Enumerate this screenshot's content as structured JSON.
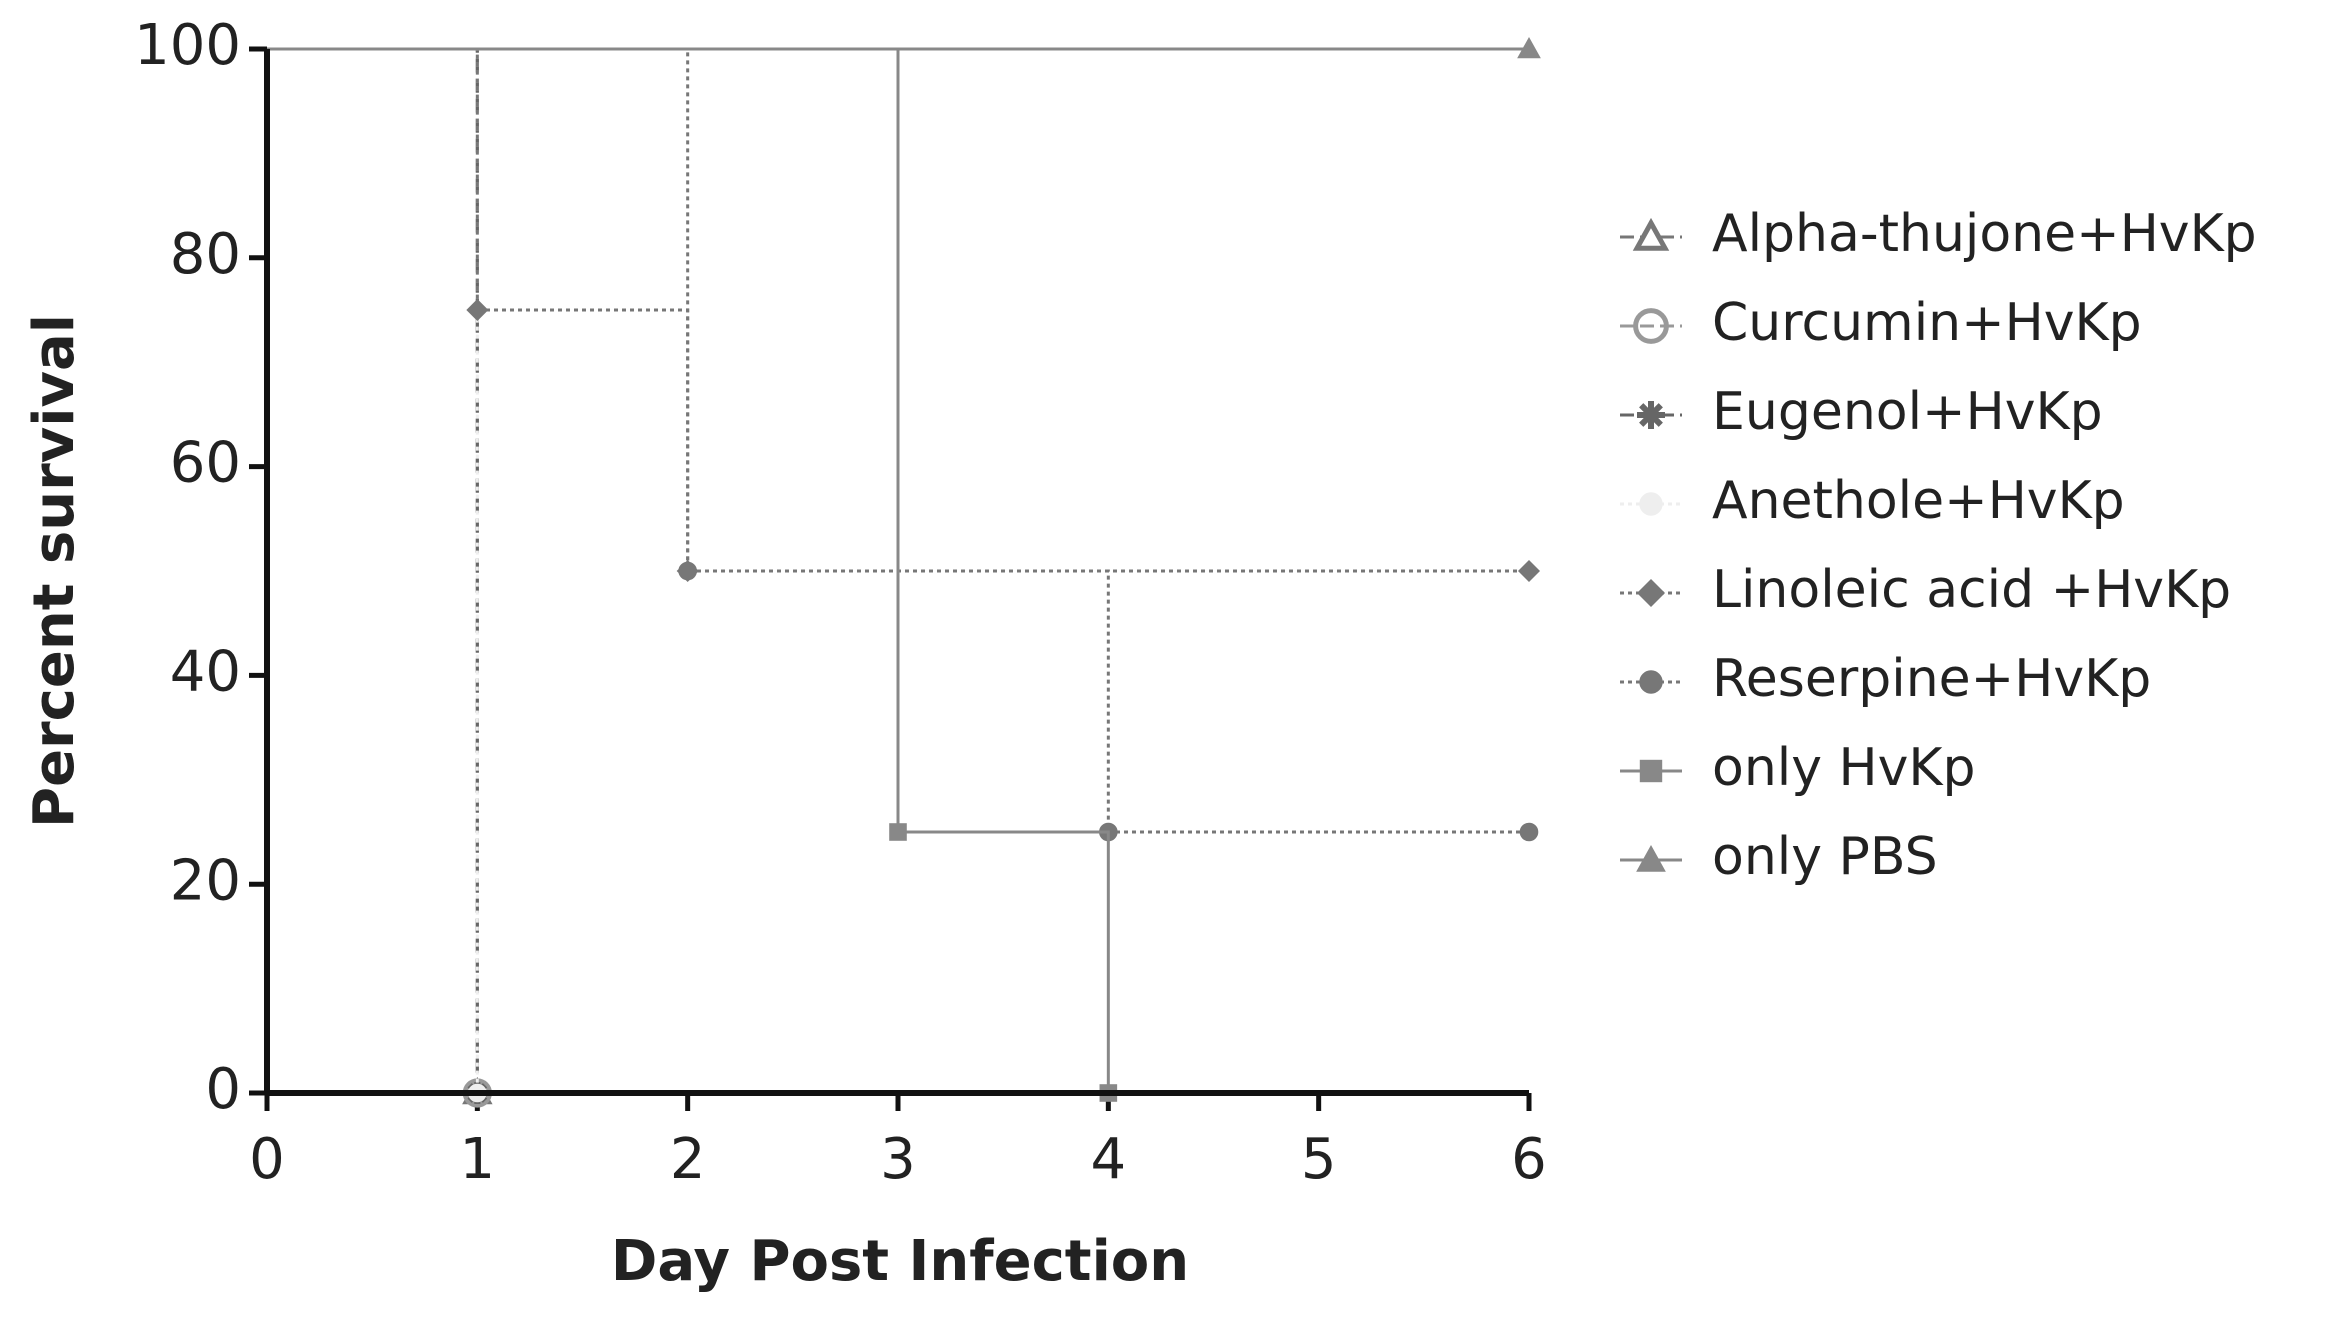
{
  "chart_data": {
    "type": "survival",
    "xlabel": "Day Post Infection",
    "ylabel": "Percent survival",
    "xlim": [
      0,
      6
    ],
    "ylim": [
      0,
      100
    ],
    "xticks": [
      0,
      1,
      2,
      3,
      4,
      5,
      6
    ],
    "yticks": [
      0,
      20,
      40,
      60,
      80,
      100
    ],
    "legend": "right",
    "series": [
      {
        "name": "Alpha-thujone+HvKp",
        "color": "#777777",
        "marker": "triangle-open",
        "linestyle": "dashed",
        "x": [
          0,
          1
        ],
        "values": [
          100,
          0
        ]
      },
      {
        "name": "Curcumin+HvKp",
        "color": "#999999",
        "marker": "circle-open",
        "linestyle": "dashed",
        "x": [
          0,
          1
        ],
        "values": [
          100,
          0
        ]
      },
      {
        "name": "Eugenol+HvKp",
        "color": "#666666",
        "marker": "star",
        "linestyle": "dashed",
        "x": [
          0,
          1
        ],
        "values": [
          100,
          0
        ]
      },
      {
        "name": "Anethole+HvKp",
        "color": "#eeeeee",
        "marker": "dot",
        "linestyle": "dotted",
        "x": [
          0,
          1
        ],
        "values": [
          100,
          0
        ]
      },
      {
        "name": "Linoleic acid +HvKp",
        "color": "#777777",
        "marker": "diamond",
        "linestyle": "dotted",
        "x": [
          0,
          1,
          2,
          6
        ],
        "values": [
          100,
          75,
          50,
          50
        ]
      },
      {
        "name": "Reserpine+HvKp",
        "color": "#777777",
        "marker": "circle",
        "linestyle": "dotted",
        "x": [
          0,
          2,
          4,
          6
        ],
        "values": [
          100,
          50,
          25,
          25
        ]
      },
      {
        "name": "only HvKp",
        "color": "#888888",
        "marker": "square",
        "linestyle": "solid",
        "x": [
          0,
          3,
          4
        ],
        "values": [
          100,
          25,
          0
        ]
      },
      {
        "name": "only PBS",
        "color": "#888888",
        "marker": "triangle",
        "linestyle": "solid",
        "x": [
          0,
          6
        ],
        "values": [
          100,
          100
        ]
      }
    ]
  }
}
